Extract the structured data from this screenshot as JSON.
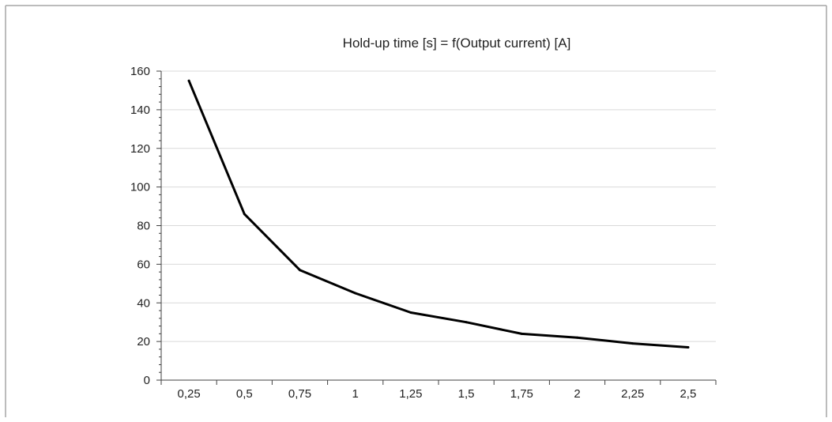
{
  "chart_data": {
    "type": "line",
    "title": "Hold-up time [s] = f(Output current) [A]",
    "xlabel": "",
    "ylabel": "",
    "categories": [
      "0,25",
      "0,5",
      "0,75",
      "1",
      "1,25",
      "1,5",
      "1,75",
      "2",
      "2,25",
      "2,5"
    ],
    "series": [
      {
        "values": [
          155,
          86,
          57,
          45,
          35,
          30,
          24,
          22,
          19,
          17
        ]
      }
    ],
    "ylim": [
      0,
      160
    ],
    "yticks": [
      0,
      20,
      40,
      60,
      80,
      100,
      120,
      140,
      160
    ],
    "grid": true,
    "legend": "none"
  },
  "colors": {
    "line": "#000000",
    "grid": "#d9d9d9",
    "axis": "#404040",
    "frame": "#a6a6a6"
  }
}
